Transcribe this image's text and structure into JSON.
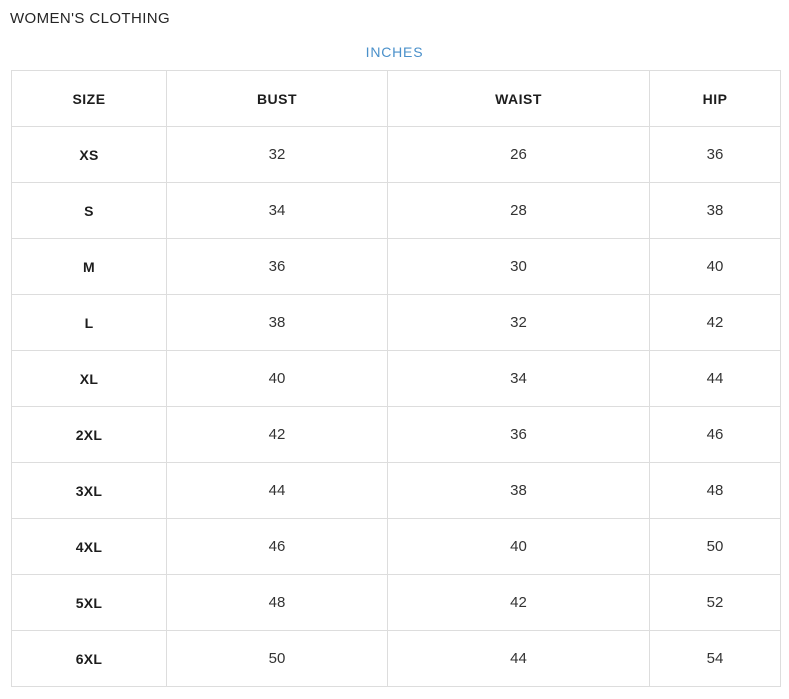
{
  "page": {
    "title": "WOMEN'S CLOTHING"
  },
  "unit_toggle": {
    "label": "INCHES"
  },
  "colors": {
    "accent_blue": "#4a90ca",
    "table_border": "#dddddd",
    "heading_text": "#1d1d1d",
    "value_text": "#333333"
  },
  "table": {
    "headers": [
      "SIZE",
      "BUST",
      "WAIST",
      "HIP"
    ],
    "rows": [
      {
        "size": "XS",
        "bust": "32",
        "waist": "26",
        "hip": "36"
      },
      {
        "size": "S",
        "bust": "34",
        "waist": "28",
        "hip": "38"
      },
      {
        "size": "M",
        "bust": "36",
        "waist": "30",
        "hip": "40"
      },
      {
        "size": "L",
        "bust": "38",
        "waist": "32",
        "hip": "42"
      },
      {
        "size": "XL",
        "bust": "40",
        "waist": "34",
        "hip": "44"
      },
      {
        "size": "2XL",
        "bust": "42",
        "waist": "36",
        "hip": "46"
      },
      {
        "size": "3XL",
        "bust": "44",
        "waist": "38",
        "hip": "48"
      },
      {
        "size": "4XL",
        "bust": "46",
        "waist": "40",
        "hip": "50"
      },
      {
        "size": "5XL",
        "bust": "48",
        "waist": "42",
        "hip": "52"
      },
      {
        "size": "6XL",
        "bust": "50",
        "waist": "44",
        "hip": "54"
      }
    ]
  }
}
